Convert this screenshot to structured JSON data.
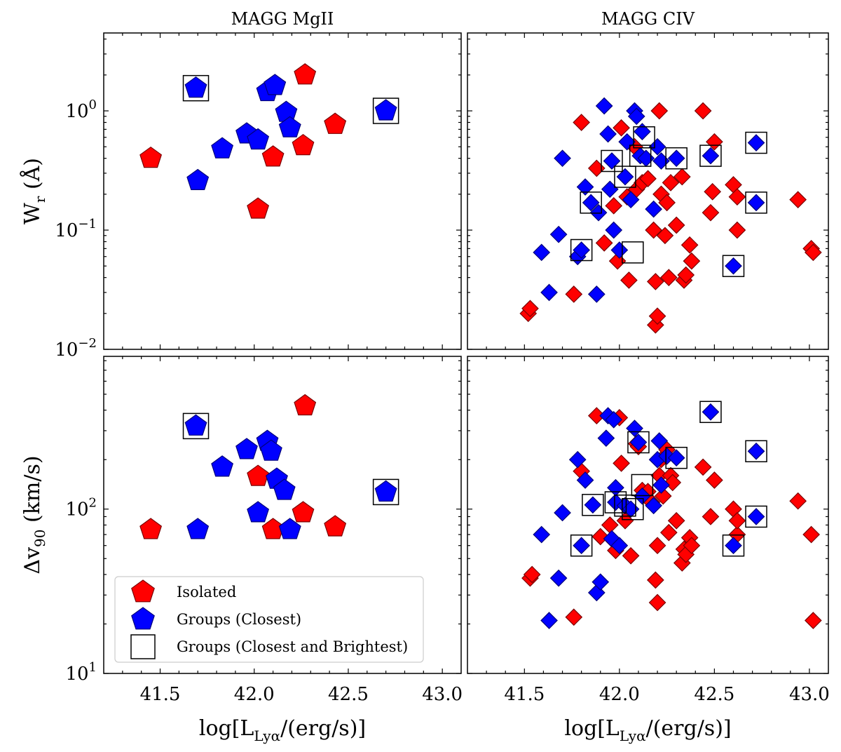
{
  "colors": {
    "isolated": "#ff0000",
    "groups": "#0000ff",
    "edge": "#7a0000",
    "edge_blue": "#00007a",
    "box": "#000000"
  },
  "chart_data": {
    "type": "scatter",
    "xlabel": "log[L_Lyα/(erg/s)]",
    "xlabel_parts": {
      "pre": "log[L",
      "sub": "Lyα",
      "post": "/(erg/s)]"
    },
    "xlim": [
      41.2,
      43.1
    ],
    "xticks": [
      "41.5",
      "42.0",
      "42.5",
      "43.0"
    ],
    "xtick_values": [
      41.5,
      42.0,
      42.5,
      43.0
    ],
    "rows": [
      {
        "ylabel": "W_r (Å)",
        "ylabel_parts": {
          "pre": "W",
          "sub": "r",
          "post": " (Å)"
        },
        "ylim": [
          0.01,
          4.5
        ],
        "yticks": [
          {
            "v": 0.01,
            "exp": "−2"
          },
          {
            "v": 0.1,
            "exp": "−1"
          },
          {
            "v": 1,
            "exp": "0"
          }
        ]
      },
      {
        "ylabel": "Δv_90 (km/s)",
        "ylabel_parts": {
          "pre": "Δv",
          "sub": "90",
          "post": " (km/s)"
        },
        "ylim": [
          10,
          850
        ],
        "yticks": [
          {
            "v": 10,
            "exp": "1"
          },
          {
            "v": 100,
            "exp": "2"
          }
        ]
      }
    ],
    "panels": [
      {
        "title": "MAGG MgII",
        "row": 0,
        "col": 0,
        "marker": "pentagon",
        "isolated": [
          [
            41.45,
            0.4
          ],
          [
            42.02,
            0.15
          ],
          [
            42.1,
            0.41
          ],
          [
            42.26,
            0.51
          ],
          [
            42.27,
            2.0
          ],
          [
            42.43,
            0.77
          ]
        ],
        "groups": [
          [
            41.69,
            1.55
          ],
          [
            41.7,
            0.26
          ],
          [
            41.83,
            0.48
          ],
          [
            41.96,
            0.64
          ],
          [
            42.02,
            0.57
          ],
          [
            42.07,
            1.45
          ],
          [
            42.11,
            1.63
          ],
          [
            42.17,
            0.97
          ],
          [
            42.19,
            0.72
          ],
          [
            42.7,
            1.0
          ]
        ],
        "boxed": [
          [
            41.69,
            1.55
          ],
          [
            42.7,
            1.0
          ]
        ]
      },
      {
        "title": "MAGG CIV",
        "row": 0,
        "col": 1,
        "marker": "diamond",
        "isolated": [
          [
            41.52,
            0.02
          ],
          [
            41.53,
            0.022
          ],
          [
            41.76,
            0.029
          ],
          [
            41.8,
            0.8
          ],
          [
            41.88,
            0.33
          ],
          [
            41.92,
            0.078
          ],
          [
            41.97,
            0.16
          ],
          [
            41.99,
            0.055
          ],
          [
            42.01,
            0.72
          ],
          [
            42.04,
            0.19
          ],
          [
            42.05,
            0.038
          ],
          [
            42.08,
            0.5
          ],
          [
            42.09,
            0.22
          ],
          [
            42.12,
            0.25
          ],
          [
            42.15,
            0.27
          ],
          [
            42.18,
            0.1
          ],
          [
            42.19,
            0.016
          ],
          [
            42.19,
            0.037
          ],
          [
            42.2,
            0.019
          ],
          [
            42.21,
            1.0
          ],
          [
            42.22,
            0.2
          ],
          [
            42.24,
            0.09
          ],
          [
            42.25,
            0.17
          ],
          [
            42.26,
            0.04
          ],
          [
            42.27,
            0.25
          ],
          [
            42.3,
            0.11
          ],
          [
            42.33,
            0.28
          ],
          [
            42.34,
            0.038
          ],
          [
            42.35,
            0.042
          ],
          [
            42.37,
            0.075
          ],
          [
            42.38,
            0.055
          ],
          [
            42.44,
            1.0
          ],
          [
            42.48,
            0.14
          ],
          [
            42.49,
            0.21
          ],
          [
            42.5,
            0.55
          ],
          [
            42.6,
            0.24
          ],
          [
            42.62,
            0.19
          ],
          [
            42.62,
            0.1
          ],
          [
            42.94,
            0.18
          ],
          [
            43.01,
            0.07
          ],
          [
            43.02,
            0.065
          ]
        ],
        "groups": [
          [
            41.59,
            0.065
          ],
          [
            41.63,
            0.03
          ],
          [
            41.68,
            0.092
          ],
          [
            41.7,
            0.4
          ],
          [
            41.78,
            0.06
          ],
          [
            41.8,
            0.068
          ],
          [
            41.82,
            0.23
          ],
          [
            41.85,
            0.17
          ],
          [
            41.88,
            0.029
          ],
          [
            41.89,
            0.14
          ],
          [
            41.92,
            1.1
          ],
          [
            41.94,
            0.64
          ],
          [
            41.95,
            0.22
          ],
          [
            41.96,
            0.38
          ],
          [
            41.97,
            0.1
          ],
          [
            42.0,
            0.068
          ],
          [
            42.03,
            0.28
          ],
          [
            42.04,
            0.55
          ],
          [
            42.06,
            0.18
          ],
          [
            42.08,
            1.0
          ],
          [
            42.09,
            0.9
          ],
          [
            42.11,
            0.42
          ],
          [
            42.12,
            0.67
          ],
          [
            42.14,
            0.4
          ],
          [
            42.18,
            0.15
          ],
          [
            42.2,
            0.5
          ],
          [
            42.22,
            0.38
          ],
          [
            42.3,
            0.4
          ],
          [
            42.48,
            0.42
          ],
          [
            42.6,
            0.05
          ],
          [
            42.72,
            0.54
          ],
          [
            42.72,
            0.17
          ]
        ],
        "boxed": [
          [
            41.8,
            0.068
          ],
          [
            41.85,
            0.17
          ],
          [
            41.96,
            0.38
          ],
          [
            42.03,
            0.28
          ],
          [
            42.07,
            0.065
          ],
          [
            42.11,
            0.42
          ],
          [
            42.13,
            0.6
          ],
          [
            42.3,
            0.4
          ],
          [
            42.48,
            0.42
          ],
          [
            42.6,
            0.05
          ],
          [
            42.72,
            0.54
          ],
          [
            42.72,
            0.17
          ]
        ]
      },
      {
        "title": "",
        "row": 1,
        "col": 0,
        "marker": "pentagon",
        "isolated": [
          [
            41.45,
            75
          ],
          [
            42.02,
            158
          ],
          [
            42.1,
            75
          ],
          [
            42.26,
            95
          ],
          [
            42.27,
            425
          ],
          [
            42.43,
            78
          ]
        ],
        "groups": [
          [
            41.69,
            320
          ],
          [
            41.7,
            75
          ],
          [
            41.83,
            180
          ],
          [
            41.96,
            230
          ],
          [
            42.02,
            95
          ],
          [
            42.07,
            258
          ],
          [
            42.09,
            225
          ],
          [
            42.12,
            152
          ],
          [
            42.16,
            130
          ],
          [
            42.19,
            75
          ],
          [
            42.7,
            127
          ]
        ],
        "boxed": [
          [
            41.69,
            320
          ],
          [
            42.7,
            127
          ]
        ]
      },
      {
        "title": "",
        "row": 1,
        "col": 1,
        "marker": "diamond",
        "isolated": [
          [
            41.53,
            38
          ],
          [
            41.54,
            40
          ],
          [
            41.76,
            22
          ],
          [
            41.8,
            170
          ],
          [
            41.88,
            370
          ],
          [
            41.9,
            68
          ],
          [
            41.95,
            80
          ],
          [
            41.97,
            64
          ],
          [
            41.98,
            56
          ],
          [
            42.0,
            360
          ],
          [
            42.01,
            190
          ],
          [
            42.03,
            85
          ],
          [
            42.06,
            52
          ],
          [
            42.09,
            250
          ],
          [
            42.1,
            240
          ],
          [
            42.12,
            130
          ],
          [
            42.15,
            128
          ],
          [
            42.17,
            110
          ],
          [
            42.19,
            37
          ],
          [
            42.2,
            27
          ],
          [
            42.2,
            60
          ],
          [
            42.21,
            160
          ],
          [
            42.22,
            200
          ],
          [
            42.23,
            120
          ],
          [
            42.25,
            230
          ],
          [
            42.26,
            72
          ],
          [
            42.27,
            160
          ],
          [
            42.28,
            145
          ],
          [
            42.3,
            85
          ],
          [
            42.33,
            47
          ],
          [
            42.34,
            57
          ],
          [
            42.35,
            53
          ],
          [
            42.37,
            67
          ],
          [
            42.38,
            60
          ],
          [
            42.44,
            180
          ],
          [
            42.48,
            90
          ],
          [
            42.5,
            150
          ],
          [
            42.6,
            100
          ],
          [
            42.62,
            70
          ],
          [
            42.62,
            85
          ],
          [
            42.94,
            112
          ],
          [
            43.01,
            70
          ],
          [
            43.02,
            21
          ]
        ],
        "boxed": [
          [
            41.8,
            60
          ],
          [
            41.86,
            106
          ],
          [
            41.98,
            110
          ],
          [
            42.03,
            105
          ],
          [
            42.07,
            100
          ],
          [
            42.1,
            255
          ],
          [
            42.12,
            140
          ],
          [
            42.3,
            205
          ],
          [
            42.48,
            390
          ],
          [
            42.6,
            60
          ],
          [
            42.72,
            225
          ],
          [
            42.72,
            90
          ]
        ],
        "groups": [
          [
            41.59,
            70
          ],
          [
            41.63,
            21
          ],
          [
            41.68,
            38
          ],
          [
            41.7,
            95
          ],
          [
            41.78,
            200
          ],
          [
            41.8,
            60
          ],
          [
            41.82,
            150
          ],
          [
            41.86,
            106
          ],
          [
            41.88,
            31
          ],
          [
            41.9,
            36
          ],
          [
            41.93,
            270
          ],
          [
            41.94,
            370
          ],
          [
            41.96,
            66
          ],
          [
            41.97,
            350
          ],
          [
            41.98,
            110
          ],
          [
            41.98,
            135
          ],
          [
            42.0,
            60
          ],
          [
            42.03,
            105
          ],
          [
            42.06,
            100
          ],
          [
            42.08,
            310
          ],
          [
            42.1,
            255
          ],
          [
            42.12,
            120
          ],
          [
            42.18,
            105
          ],
          [
            42.2,
            200
          ],
          [
            42.21,
            260
          ],
          [
            42.22,
            140
          ],
          [
            42.25,
            210
          ],
          [
            42.3,
            205
          ],
          [
            42.48,
            390
          ],
          [
            42.6,
            60
          ],
          [
            42.72,
            225
          ],
          [
            42.72,
            90
          ]
        ]
      }
    ],
    "legend": {
      "position": "lower-left",
      "entries": [
        {
          "label": "Isolated",
          "marker": "pentagon",
          "color": "red"
        },
        {
          "label": "Groups (Closest)",
          "marker": "pentagon",
          "color": "blue"
        },
        {
          "label": "Groups (Closest and Brightest)",
          "marker": "square-open",
          "color": "black"
        }
      ]
    }
  }
}
